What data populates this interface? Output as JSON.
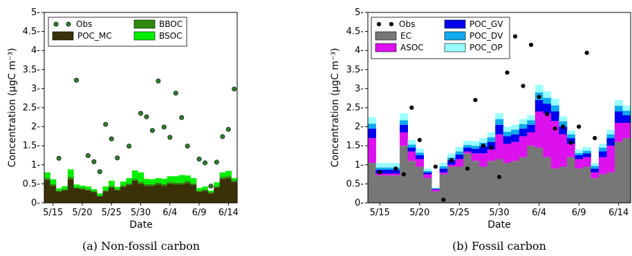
{
  "chart_data": [
    {
      "type": "bar",
      "stacked": true,
      "caption": "(a) Non-fossil carbon",
      "xlabel": "Date",
      "ylabel": "Concentration (μgC m⁻³)",
      "ylim": [
        0,
        5
      ],
      "yticks": [
        "0",
        "0.5",
        "1",
        "1.5",
        "2",
        "2.5",
        "3",
        "3.5",
        "4",
        "4.5",
        "5"
      ],
      "xtick_labels": [
        "5/15",
        "5/20",
        "5/25",
        "5/30",
        "6/4",
        "6/9",
        "6/14"
      ],
      "xtick_index": [
        1,
        6,
        11,
        16,
        21,
        26,
        31
      ],
      "legend_placement": "top-left",
      "legend": [
        "Obs",
        "BBOC",
        "POC_MC",
        "BSOC"
      ],
      "categories": [
        "5/14",
        "5/15",
        "5/16",
        "5/17",
        "5/18",
        "5/19",
        "5/20",
        "5/21",
        "5/22",
        "5/23",
        "5/24",
        "5/25",
        "5/26",
        "5/27",
        "5/28",
        "5/29",
        "5/30",
        "5/31",
        "6/1",
        "6/2",
        "6/3",
        "6/4",
        "6/5",
        "6/6",
        "6/7",
        "6/8",
        "6/9",
        "6/10",
        "6/11",
        "6/12",
        "6/13",
        "6/14",
        "6/15"
      ],
      "series": [
        {
          "name": "POC_MC",
          "color": "#3a3108",
          "values": [
            0.6,
            0.45,
            0.3,
            0.33,
            0.62,
            0.38,
            0.36,
            0.33,
            0.28,
            0.17,
            0.3,
            0.4,
            0.33,
            0.42,
            0.47,
            0.58,
            0.5,
            0.45,
            0.45,
            0.48,
            0.45,
            0.5,
            0.48,
            0.48,
            0.52,
            0.47,
            0.29,
            0.32,
            0.25,
            0.4,
            0.63,
            0.65,
            0.55
          ]
        },
        {
          "name": "BBOC",
          "color": "#2e8b0d",
          "values": [
            0.05,
            0.04,
            0.02,
            0.03,
            0.06,
            0.03,
            0.03,
            0.03,
            0.03,
            0.02,
            0.03,
            0.04,
            0.03,
            0.04,
            0.04,
            0.05,
            0.05,
            0.04,
            0.04,
            0.05,
            0.04,
            0.05,
            0.05,
            0.05,
            0.05,
            0.04,
            0.03,
            0.03,
            0.03,
            0.04,
            0.05,
            0.05,
            0.04
          ]
        },
        {
          "name": "BSOC",
          "color": "#00ee00",
          "values": [
            0.15,
            0.13,
            0.06,
            0.08,
            0.2,
            0.07,
            0.06,
            0.07,
            0.05,
            0.06,
            0.1,
            0.14,
            0.06,
            0.1,
            0.14,
            0.22,
            0.25,
            0.14,
            0.13,
            0.12,
            0.14,
            0.15,
            0.17,
            0.2,
            0.15,
            0.14,
            0.07,
            0.08,
            0.04,
            0.1,
            0.12,
            0.14,
            0.06
          ]
        }
      ],
      "obs": [
        {
          "x": 2,
          "y": 1.17
        },
        {
          "x": 5,
          "y": 3.22
        },
        {
          "x": 7,
          "y": 1.24
        },
        {
          "x": 8,
          "y": 1.08
        },
        {
          "x": 9,
          "y": 0.82
        },
        {
          "x": 10,
          "y": 2.06
        },
        {
          "x": 11,
          "y": 1.68
        },
        {
          "x": 12,
          "y": 1.18
        },
        {
          "x": 14,
          "y": 1.49
        },
        {
          "x": 16,
          "y": 2.35
        },
        {
          "x": 17,
          "y": 2.26
        },
        {
          "x": 18,
          "y": 1.9
        },
        {
          "x": 19,
          "y": 3.2
        },
        {
          "x": 20,
          "y": 1.99
        },
        {
          "x": 21,
          "y": 1.72
        },
        {
          "x": 22,
          "y": 2.88
        },
        {
          "x": 23,
          "y": 2.24
        },
        {
          "x": 24,
          "y": 1.49
        },
        {
          "x": 26,
          "y": 1.15
        },
        {
          "x": 27,
          "y": 1.05
        },
        {
          "x": 28,
          "y": 0.44
        },
        {
          "x": 29,
          "y": 1.07
        },
        {
          "x": 30,
          "y": 1.74
        },
        {
          "x": 31,
          "y": 1.93
        },
        {
          "x": 32,
          "y": 2.99
        }
      ]
    },
    {
      "type": "bar",
      "stacked": true,
      "caption": "(b) Fossil carbon",
      "xlabel": "Date",
      "ylabel": "Concentration (μgC m⁻³)",
      "ylim": [
        0,
        5
      ],
      "yticks": [
        "0",
        "0.5",
        "1",
        "1.5",
        "2",
        "2.5",
        "3",
        "3.5",
        "4",
        "4.5",
        "5"
      ],
      "xtick_labels": [
        "5/15",
        "5/20",
        "5/25",
        "5/30",
        "6/4",
        "6/9",
        "6/14"
      ],
      "xtick_index": [
        1,
        6,
        11,
        16,
        21,
        26,
        31
      ],
      "legend_placement": "top-left",
      "legend": [
        "Obs",
        "POC_GV",
        "EC",
        "POC_DV",
        "ASOC",
        "POC_OP"
      ],
      "categories": [
        "5/14",
        "5/15",
        "5/16",
        "5/17",
        "5/18",
        "5/19",
        "5/20",
        "5/21",
        "5/22",
        "5/23",
        "5/24",
        "5/25",
        "5/26",
        "5/27",
        "5/28",
        "5/29",
        "5/30",
        "5/31",
        "6/1",
        "6/2",
        "6/3",
        "6/4",
        "6/5",
        "6/6",
        "6/7",
        "6/8",
        "6/9",
        "6/10",
        "6/11",
        "6/12",
        "6/13",
        "6/14",
        "6/15"
      ],
      "series": [
        {
          "name": "EC",
          "color": "#777777",
          "values": [
            1.05,
            0.72,
            0.72,
            0.72,
            1.5,
            1.1,
            0.95,
            0.65,
            0.3,
            0.75,
            0.95,
            0.95,
            1.3,
            1.1,
            0.95,
            1.1,
            1.15,
            1.05,
            1.1,
            1.2,
            1.5,
            1.45,
            1.2,
            0.9,
            0.95,
            1.2,
            0.9,
            0.95,
            0.65,
            0.75,
            0.8,
            1.6,
            1.7
          ]
        },
        {
          "name": "ASOC",
          "color": "#dd11ee",
          "values": [
            0.65,
            0.05,
            0.05,
            0.05,
            0.35,
            0.25,
            0.2,
            0.1,
            0.05,
            0.05,
            0.05,
            0.2,
            0.05,
            0.2,
            0.35,
            0.3,
            0.65,
            0.5,
            0.5,
            0.55,
            0.35,
            0.95,
            1.15,
            1.25,
            0.85,
            0.35,
            0.25,
            0.25,
            0.15,
            0.45,
            0.7,
            0.5,
            0.4
          ]
        },
        {
          "name": "POC_GV",
          "color": "#0000ee",
          "values": [
            0.25,
            0.1,
            0.1,
            0.1,
            0.2,
            0.1,
            0.1,
            0.05,
            0.02,
            0.1,
            0.12,
            0.12,
            0.1,
            0.12,
            0.18,
            0.2,
            0.25,
            0.2,
            0.2,
            0.2,
            0.2,
            0.3,
            0.25,
            0.25,
            0.2,
            0.15,
            0.1,
            0.1,
            0.1,
            0.15,
            0.2,
            0.3,
            0.2
          ]
        },
        {
          "name": "POC_DV",
          "color": "#11aaee",
          "values": [
            0.13,
            0.06,
            0.06,
            0.06,
            0.12,
            0.08,
            0.07,
            0.04,
            0.01,
            0.06,
            0.07,
            0.08,
            0.07,
            0.08,
            0.1,
            0.12,
            0.15,
            0.12,
            0.12,
            0.12,
            0.12,
            0.2,
            0.16,
            0.16,
            0.14,
            0.1,
            0.06,
            0.07,
            0.07,
            0.1,
            0.1,
            0.15,
            0.12
          ]
        },
        {
          "name": "POC_OP",
          "color": "#99ffff",
          "values": [
            0.17,
            0.12,
            0.12,
            0.12,
            0.18,
            0.12,
            0.1,
            0.06,
            0.02,
            0.09,
            0.11,
            0.12,
            0.11,
            0.12,
            0.12,
            0.13,
            0.15,
            0.13,
            0.13,
            0.13,
            0.13,
            0.2,
            0.17,
            0.17,
            0.13,
            0.1,
            0.09,
            0.1,
            0.08,
            0.1,
            0.12,
            0.15,
            0.13
          ]
        }
      ],
      "obs": [
        {
          "x": 1,
          "y": 0.8
        },
        {
          "x": 3,
          "y": 0.9
        },
        {
          "x": 4,
          "y": 0.75
        },
        {
          "x": 5,
          "y": 2.5
        },
        {
          "x": 6,
          "y": 1.65
        },
        {
          "x": 8,
          "y": 0.95
        },
        {
          "x": 9,
          "y": 0.08
        },
        {
          "x": 10,
          "y": 1.12
        },
        {
          "x": 12,
          "y": 0.9
        },
        {
          "x": 13,
          "y": 2.7
        },
        {
          "x": 14,
          "y": 1.5
        },
        {
          "x": 15,
          "y": 1.45
        },
        {
          "x": 16,
          "y": 0.68
        },
        {
          "x": 17,
          "y": 3.42
        },
        {
          "x": 18,
          "y": 4.37
        },
        {
          "x": 19,
          "y": 3.07
        },
        {
          "x": 20,
          "y": 4.15
        },
        {
          "x": 21,
          "y": 2.78
        },
        {
          "x": 22,
          "y": 2.33
        },
        {
          "x": 23,
          "y": 1.95
        },
        {
          "x": 24,
          "y": 2.0
        },
        {
          "x": 25,
          "y": 1.58
        },
        {
          "x": 26,
          "y": 2.0
        },
        {
          "x": 27,
          "y": 3.94
        },
        {
          "x": 28,
          "y": 1.7
        }
      ]
    }
  ]
}
